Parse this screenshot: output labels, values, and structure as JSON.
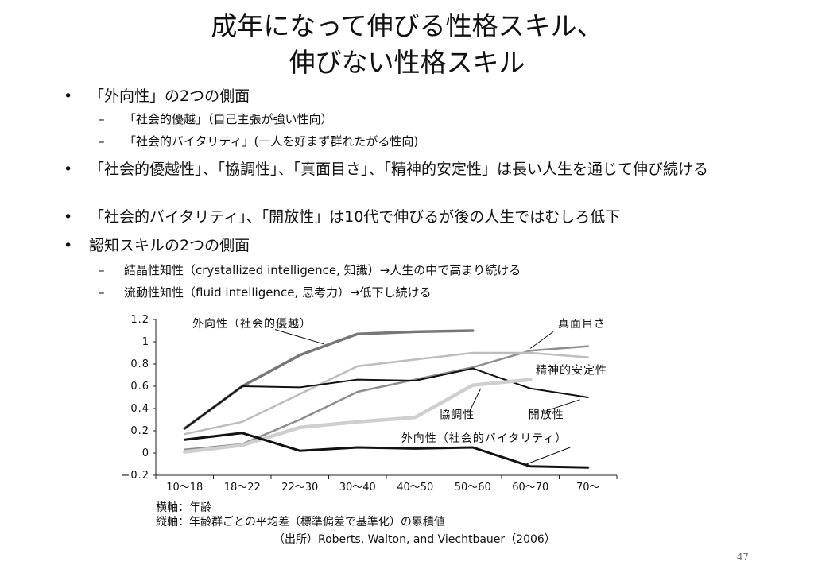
{
  "title": {
    "line1": "成年になって伸びる性格スキル、",
    "line2": "伸びない性格スキル"
  },
  "bullets": [
    {
      "text": "「外向性」の2つの側面",
      "sub": [
        "「社会的優越」（自己主張が強い性向）",
        "「社会的バイタリティ」(一人を好まず群れたがる性向)"
      ]
    },
    {
      "text": "「社会的優越性」、「協調性」、「真面目さ」、「精神的安定性」は長い人生を通じて伸び続ける",
      "sub": []
    },
    {
      "text": "「社会的バイタリティ」、「開放性」は10代で伸びるが後の人生ではむしろ低下",
      "sub": []
    },
    {
      "text": "認知スキルの2つの側面",
      "sub": [
        "結晶性知性（crystallized intelligence, 知識）→人生の中で高まり続ける",
        "流動性知性（fluid intelligence, 思考力）→低下し続ける"
      ]
    }
  ],
  "bullet_marker": "•",
  "sub_marker": "–",
  "chart_data": {
    "type": "line",
    "categories": [
      "10〜18",
      "18〜22",
      "22〜30",
      "30〜40",
      "40〜50",
      "50〜60",
      "60〜70",
      "70〜"
    ],
    "ylim": [
      -0.2,
      1.2
    ],
    "yticks": [
      "1.2",
      "1",
      "0.8",
      "0.6",
      "0.4",
      "0.2",
      "0",
      "−0.2"
    ],
    "grid": false,
    "series": [
      {
        "name": "外向性（社会的優越）",
        "values": [
          0.22,
          0.6,
          0.88,
          1.07,
          1.09,
          1.1,
          null,
          null
        ],
        "color": "#777777",
        "width": 3.5
      },
      {
        "name": "真面目さ",
        "values": [
          0.03,
          0.08,
          0.3,
          0.55,
          0.66,
          0.77,
          0.92,
          0.96
        ],
        "color": "#8e8e8e",
        "width": 2.5
      },
      {
        "name": "精神的安定性",
        "values": [
          0.17,
          0.28,
          0.53,
          0.78,
          0.84,
          0.9,
          0.9,
          0.86
        ],
        "color": "#bdbdbd",
        "width": 2.5
      },
      {
        "name": "開放性",
        "values": [
          0.22,
          0.6,
          0.59,
          0.66,
          0.65,
          0.76,
          0.58,
          0.5
        ],
        "color": "#111111",
        "width": 2
      },
      {
        "name": "協調性",
        "values": [
          0.01,
          0.07,
          0.23,
          0.28,
          0.32,
          0.61,
          0.66,
          null
        ],
        "color": "#cfcfcf",
        "width": 4.5
      },
      {
        "name": "外向性（社会的バイタリティ）",
        "values": [
          0.12,
          0.18,
          0.02,
          0.05,
          0.04,
          0.05,
          -0.12,
          -0.13
        ],
        "color": "#111111",
        "width": 3
      }
    ],
    "labels": [
      "外向性（社会的優越）",
      "真面目さ",
      "精神的安定性",
      "協調性",
      "開放性",
      "外向性（社会的バイタリティ）"
    ]
  },
  "captions": {
    "xaxis": "横軸：年齢",
    "yaxis": "縦軸：年齢群ごとの平均差（標準偏差で基準化）の累積値",
    "source": "（出所）Roberts, Walton, and Viechtbauer（2006）"
  },
  "slide_number": "47"
}
